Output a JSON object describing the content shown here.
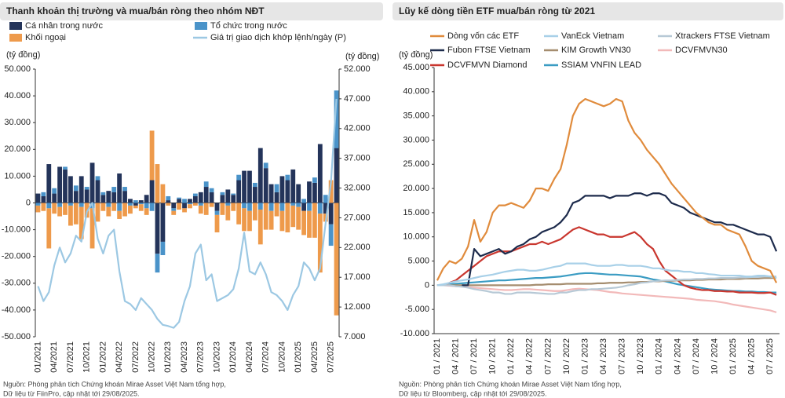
{
  "chart_data": [
    {
      "type": "bar",
      "stacked": true,
      "title": "Thanh khoản thị trường và mua/bán ròng theo nhóm NĐT",
      "ylabel": "(tỷ đồng)",
      "y2label": "(tỷ đồng)",
      "categories": [
        "01/2021",
        null,
        null,
        "04/2021",
        null,
        null,
        "07/2021",
        null,
        null,
        "10/2021",
        null,
        null,
        "01/2022",
        null,
        null,
        "04/2022",
        null,
        null,
        "07/2022",
        null,
        null,
        "10/2022",
        null,
        null,
        "01/2023",
        null,
        null,
        "04/2023",
        null,
        null,
        "07/2023",
        null,
        null,
        "10/2023",
        null,
        null,
        "01/2024",
        null,
        null,
        "04/2024",
        null,
        null,
        "07/2024",
        null,
        null,
        "10/2024",
        null,
        null,
        "01/2025",
        null,
        null,
        "04/2025",
        null,
        null,
        "07/2025",
        null
      ],
      "series": [
        {
          "name": "Cá nhân trong nước",
          "color": "#24345a",
          "values": [
            3500,
            2500,
            14500,
            3500,
            13500,
            12500,
            10000,
            4500,
            10000,
            5000,
            15000,
            8500,
            3000,
            4500,
            4000,
            11000,
            4500,
            1500,
            -1000,
            1000,
            3000,
            8500,
            -19000,
            -14500,
            1000,
            -2000,
            1500,
            -2000,
            1500,
            2500,
            4000,
            6000,
            4000,
            -3000,
            3000,
            5000,
            3000,
            8500,
            12000,
            12000,
            6000,
            20500,
            13000,
            7000,
            4000,
            10000,
            8500,
            12500,
            7000,
            -3000,
            8000,
            7500,
            22000,
            -4000,
            -8000,
            20500
          ]
        },
        {
          "name": "Tổ chức trong nước",
          "color": "#4a93c9",
          "values": [
            -1000,
            1500,
            -2000,
            2000,
            -1500,
            1000,
            -1000,
            2000,
            -1500,
            1000,
            -2000,
            1500,
            1000,
            -1500,
            2000,
            -3000,
            1500,
            -1000,
            1000,
            -500,
            -2000,
            -3000,
            -7000,
            -5000,
            1500,
            -1000,
            500,
            1500,
            -500,
            1000,
            -1000,
            2000,
            1500,
            -1500,
            1000,
            -1000,
            500,
            2000,
            -2000,
            -3000,
            1500,
            -2500,
            2000,
            -3000,
            3000,
            -3000,
            2000,
            -1000,
            -1500,
            1500,
            -3000,
            2000,
            -4000,
            3000,
            -8000,
            21500
          ]
        },
        {
          "name": "Khối ngoại",
          "color": "#ee9a4b",
          "values": [
            -2500,
            -3000,
            -15000,
            -4000,
            -3500,
            -4500,
            -7500,
            -8000,
            -12000,
            -5500,
            -15000,
            -7000,
            -3000,
            -3500,
            -3000,
            -3000,
            -5000,
            -3000,
            -1000,
            -2500,
            -2500,
            18500,
            14500,
            7000,
            -1000,
            -1500,
            -2500,
            -1500,
            -1500,
            -1000,
            -3000,
            -4500,
            -1500,
            -6500,
            -4500,
            -5500,
            -3000,
            -8000,
            -8500,
            -7500,
            -6500,
            -13000,
            -10000,
            -7000,
            -5000,
            -7500,
            -11000,
            -8000,
            -8500,
            -9000,
            -10000,
            -13000,
            -22000,
            -3000,
            8500,
            -42000
          ]
        },
        {
          "name": "Giá trị giao dịch khớp lệnh/ngày (P)",
          "color": "#9cc8e3",
          "type": "line",
          "axis": "y2",
          "values": [
            15500,
            13000,
            14500,
            19000,
            22000,
            19500,
            21000,
            24000,
            23000,
            28000,
            29500,
            23500,
            21000,
            24000,
            25000,
            18000,
            13000,
            12500,
            11500,
            13500,
            12500,
            11500,
            10000,
            9000,
            8800,
            8500,
            9500,
            13000,
            15500,
            21000,
            22500,
            16500,
            17500,
            13000,
            13500,
            14000,
            15000,
            18500,
            24500,
            18000,
            17500,
            19500,
            17500,
            14500,
            14000,
            13000,
            11500,
            14000,
            15500,
            19500,
            18500,
            16500,
            18500,
            26000,
            33000,
            47000
          ]
        }
      ],
      "ylim": [
        -50000,
        50000
      ],
      "yticks": [
        {
          "value": 50000,
          "label": "50.000"
        },
        {
          "value": 40000,
          "label": "40.000"
        },
        {
          "value": 30000,
          "label": "30.000"
        },
        {
          "value": 20000,
          "label": "20.000"
        },
        {
          "value": 10000,
          "label": "10.000"
        },
        0,
        {
          "value": -10000,
          "label": "-10.000"
        },
        {
          "value": -20000,
          "label": "-20.000"
        },
        {
          "value": -30000,
          "label": "-30.000"
        },
        {
          "value": -40000,
          "label": "-40.000"
        },
        {
          "value": -50000,
          "label": "-50.000"
        }
      ],
      "y2lim": [
        7000,
        52000
      ],
      "y2ticks": [
        {
          "value": 52000,
          "label": "52.000"
        },
        {
          "value": 47000,
          "label": "47.000"
        },
        {
          "value": 42000,
          "label": "42.000"
        },
        {
          "value": 37000,
          "label": "37.000"
        },
        {
          "value": 32000,
          "label": "32.000"
        },
        {
          "value": 27000,
          "label": "27.000"
        },
        {
          "value": 22000,
          "label": "22.000"
        },
        {
          "value": 17000,
          "label": "17.000"
        },
        {
          "value": 12000,
          "label": "12.000"
        },
        {
          "value": 7000,
          "label": "7.000"
        }
      ],
      "source": [
        "Nguồn: Phòng phân tích Chứng khoán Mirae Asset Việt Nam tổng hợp,",
        "Dữ liệu từ FiinPro, cập nhật tới 29/08/2025."
      ]
    },
    {
      "type": "line",
      "title": "Lũy kế dòng tiền ETF mua/bán ròng từ 2021",
      "ylabel": "(tỷ đồng)",
      "categories": [
        "01 / 2021",
        null,
        null,
        "04 / 2021",
        null,
        null,
        "07 / 2021",
        null,
        null,
        "10 / 2021",
        null,
        null,
        "01 / 2022",
        null,
        null,
        "04 / 2022",
        null,
        null,
        "07 / 2022",
        null,
        null,
        "10 / 2022",
        null,
        null,
        "01 / 2023",
        null,
        null,
        "04 / 2023",
        null,
        null,
        "07 / 2023",
        null,
        null,
        "10 / 2023",
        null,
        null,
        "01 / 2024",
        null,
        null,
        "04 / 2024",
        null,
        null,
        "07 / 2024",
        null,
        null,
        "10 / 2024",
        null,
        null,
        "01 / 2025",
        null,
        null,
        "04 / 2025",
        null,
        null,
        "07 / 2025",
        null
      ],
      "series": [
        {
          "name": "Dòng vốn các ETF",
          "color": "#e08b3c",
          "values": [
            1000,
            3500,
            5000,
            4500,
            5500,
            8000,
            13500,
            9000,
            11000,
            15000,
            16500,
            16500,
            17000,
            16500,
            16000,
            17500,
            20000,
            20000,
            19500,
            22000,
            24000,
            29000,
            35000,
            37500,
            38500,
            38000,
            37500,
            37000,
            37500,
            38500,
            38000,
            34000,
            31500,
            30000,
            28000,
            26500,
            25000,
            23000,
            21000,
            19500,
            18000,
            16500,
            15000,
            14000,
            13000,
            12500,
            12500,
            11500,
            11000,
            10500,
            8000,
            5000,
            4000,
            3500,
            3000,
            500
          ]
        },
        {
          "name": "VanEck Vietnam",
          "color": "#a8d0e8",
          "values": [
            0,
            200,
            500,
            800,
            1000,
            1200,
            1500,
            1800,
            2000,
            2200,
            2500,
            2800,
            3000,
            3200,
            3200,
            3000,
            3000,
            3200,
            3500,
            3800,
            4000,
            4500,
            4500,
            4500,
            4500,
            4200,
            4000,
            4000,
            4000,
            4200,
            4200,
            4000,
            4000,
            4000,
            3800,
            3500,
            3500,
            3200,
            3000,
            3000,
            2800,
            2800,
            2500,
            2500,
            2300,
            2200,
            2000,
            2000,
            2000,
            2000,
            1800,
            1800,
            2000,
            2000,
            1800,
            1500
          ]
        },
        {
          "name": "Xtrackers FTSE Vietnam",
          "color": "#b7c9d6",
          "values": [
            0,
            0,
            0,
            -200,
            -300,
            -500,
            -800,
            -1000,
            -1200,
            -1500,
            -1500,
            -1800,
            -1800,
            -1500,
            -1500,
            -1500,
            -1600,
            -1700,
            -1800,
            -1800,
            -1500,
            -1500,
            -1200,
            -1000,
            -1000,
            -800,
            -800,
            -700,
            -600,
            -500,
            -300,
            0,
            200,
            500,
            600,
            800,
            900,
            1000,
            1000,
            1100,
            1200,
            1200,
            1300,
            1300,
            1400,
            1400,
            1500,
            1500,
            1500,
            1600,
            1600,
            1700,
            1700,
            1800,
            1800,
            1800
          ]
        },
        {
          "name": "Fubon FTSE Vietnam",
          "color": "#1d2b4c",
          "values": [
            null,
            null,
            null,
            null,
            0,
            0,
            7500,
            6000,
            6500,
            7000,
            7500,
            6500,
            7000,
            8000,
            8500,
            9500,
            10000,
            11000,
            11500,
            12000,
            13000,
            14500,
            17000,
            17500,
            18500,
            18500,
            18500,
            18500,
            18000,
            18500,
            18500,
            18500,
            19000,
            19000,
            18500,
            19000,
            19000,
            18500,
            17000,
            16500,
            16000,
            15000,
            14500,
            14000,
            13500,
            13000,
            13000,
            12500,
            12500,
            12000,
            11500,
            11000,
            10500,
            10500,
            10000,
            7000
          ]
        },
        {
          "name": "KIM Growth VN30",
          "color": "#a58d6f",
          "values": [
            0,
            0,
            0,
            0,
            0,
            0,
            0,
            0,
            0,
            0,
            0,
            0,
            0,
            0,
            0,
            0,
            100,
            100,
            200,
            200,
            200,
            300,
            300,
            300,
            300,
            300,
            400,
            400,
            500,
            500,
            500,
            600,
            600,
            700,
            700,
            800,
            800,
            900,
            900,
            1000,
            1000,
            1000,
            1100,
            1100,
            1200,
            1200,
            1200,
            1300,
            1300,
            1300,
            1400,
            1400,
            1400,
            1500,
            1500,
            1500
          ]
        },
        {
          "name": "DCVFMVN30",
          "color": "#f2b9b9",
          "values": [
            0,
            0,
            -100,
            -200,
            -300,
            -400,
            -500,
            -600,
            -700,
            -800,
            -900,
            -1000,
            -1000,
            -900,
            -800,
            -800,
            -900,
            -1000,
            -1100,
            -1200,
            -1200,
            -1000,
            -800,
            -700,
            -800,
            -900,
            -1000,
            -1200,
            -1400,
            -1500,
            -1700,
            -1800,
            -1900,
            -2000,
            -2100,
            -2200,
            -2300,
            -2400,
            -2500,
            -2600,
            -2700,
            -2800,
            -3000,
            -3100,
            -3200,
            -3300,
            -3500,
            -3700,
            -4000,
            -4200,
            -4400,
            -4600,
            -4800,
            -5000,
            -5200,
            -5600
          ]
        },
        {
          "name": "DCVFMVN Diamond",
          "color": "#c9362e",
          "values": [
            0,
            0,
            500,
            1000,
            2000,
            3000,
            4000,
            5000,
            6000,
            6500,
            7000,
            7000,
            7000,
            7500,
            8000,
            8500,
            8500,
            9000,
            8500,
            9000,
            9500,
            10500,
            11500,
            12000,
            11500,
            11000,
            10500,
            10500,
            10000,
            10000,
            10000,
            10500,
            11000,
            10000,
            8500,
            7500,
            5000,
            3000,
            2000,
            1000,
            0,
            -500,
            -800,
            -1000,
            -1000,
            -1200,
            -1200,
            -1300,
            -1300,
            -1500,
            -1500,
            -1500,
            -1600,
            -1600,
            -1500,
            -2000
          ]
        },
        {
          "name": "SSIAM VNFIN LEAD",
          "color": "#3b9cc3",
          "values": [
            0,
            100,
            200,
            300,
            400,
            500,
            600,
            700,
            800,
            900,
            1000,
            1000,
            1100,
            1200,
            1300,
            1400,
            1500,
            1500,
            1600,
            1700,
            1800,
            2000,
            2200,
            2400,
            2500,
            2500,
            2400,
            2300,
            2200,
            2200,
            2100,
            2000,
            1900,
            1800,
            1500,
            1200,
            1000,
            800,
            500,
            200,
            0,
            -200,
            -400,
            -600,
            -800,
            -900,
            -1000,
            -1100,
            -1200,
            -1200,
            -1300,
            -1300,
            -1400,
            -1400,
            -1500,
            -1500
          ]
        }
      ],
      "ylim": [
        -10000,
        45000
      ],
      "yticks": [
        {
          "value": 45000,
          "label": "45.000"
        },
        {
          "value": 40000,
          "label": "40.000"
        },
        {
          "value": 35000,
          "label": "35.000"
        },
        {
          "value": 30000,
          "label": "30.000"
        },
        {
          "value": 25000,
          "label": "25.000"
        },
        {
          "value": 20000,
          "label": "20.000"
        },
        {
          "value": 15000,
          "label": "15.000"
        },
        {
          "value": 10000,
          "label": "10.000"
        },
        {
          "value": 5000,
          "label": "5.000"
        },
        0,
        {
          "value": -5000,
          "label": "-5.000"
        },
        {
          "value": -10000,
          "label": "-10.000"
        }
      ],
      "source": [
        "Nguồn: Phòng phân tích Chứng khoán Mirae Asset Việt Nam tổng hợp,",
        "Dữ liệu từ Bloomberg, cập nhật tới 29/08/2025."
      ]
    }
  ]
}
